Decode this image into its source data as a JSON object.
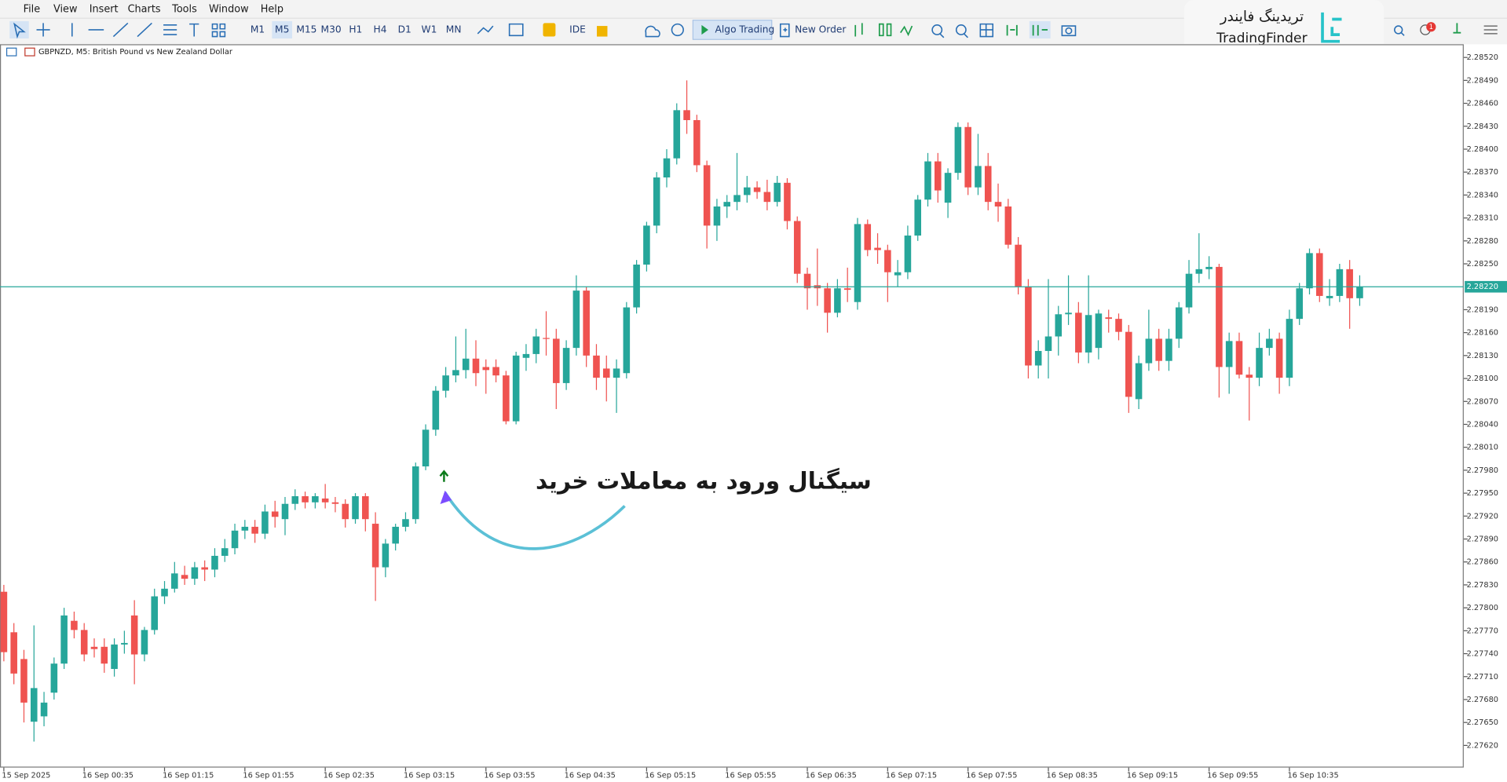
{
  "menu": [
    "File",
    "View",
    "Insert",
    "Charts",
    "Tools",
    "Window",
    "Help"
  ],
  "toolbar": {
    "timeframes": [
      "M1",
      "M5",
      "M15",
      "M30",
      "H1",
      "H4",
      "D1",
      "W1",
      "MN"
    ],
    "active_timeframe": "M5",
    "ide": "IDE",
    "algo_trading": "Algo Trading",
    "new_order": "New Order",
    "notifications": "1"
  },
  "logo": {
    "persian": "تریدینگ فایندر",
    "latin": "TradingFinder"
  },
  "annotation": "سیگنال ورود به معاملات خرید",
  "chart_data": {
    "type": "candlestick",
    "title": "GBPNZD, M5:  British Pound vs New Zealand Dollar",
    "up_color": "#26a69a",
    "down_color": "#ef5350",
    "grid": false,
    "ylim": [
      2.27591,
      2.28536
    ],
    "yticks": [
      {
        "value": 2.2852,
        "label": "2.28520"
      },
      {
        "value": 2.2849,
        "label": "2.28490"
      },
      {
        "value": 2.2846,
        "label": "2.28460"
      },
      {
        "value": 2.2843,
        "label": "2.28430"
      },
      {
        "value": 2.284,
        "label": "2.28400"
      },
      {
        "value": 2.2837,
        "label": "2.28370"
      },
      {
        "value": 2.2834,
        "label": "2.28340"
      },
      {
        "value": 2.2831,
        "label": "2.28310"
      },
      {
        "value": 2.2828,
        "label": "2.28280"
      },
      {
        "value": 2.2825,
        "label": "2.28250"
      },
      {
        "value": 2.2819,
        "label": "2.28190"
      },
      {
        "value": 2.2816,
        "label": "2.28160"
      },
      {
        "value": 2.2813,
        "label": "2.28130"
      },
      {
        "value": 2.281,
        "label": "2.28100"
      },
      {
        "value": 2.2807,
        "label": "2.28070"
      },
      {
        "value": 2.2804,
        "label": "2.28040"
      },
      {
        "value": 2.2801,
        "label": "2.28010"
      },
      {
        "value": 2.2798,
        "label": "2.27980"
      },
      {
        "value": 2.2795,
        "label": "2.27950"
      },
      {
        "value": 2.2792,
        "label": "2.27920"
      },
      {
        "value": 2.2789,
        "label": "2.27890"
      },
      {
        "value": 2.2786,
        "label": "2.27860"
      },
      {
        "value": 2.2783,
        "label": "2.27830"
      },
      {
        "value": 2.278,
        "label": "2.27800"
      },
      {
        "value": 2.2777,
        "label": "2.27770"
      },
      {
        "value": 2.2774,
        "label": "2.27740"
      },
      {
        "value": 2.2771,
        "label": "2.27710"
      },
      {
        "value": 2.2768,
        "label": "2.27680"
      },
      {
        "value": 2.2765,
        "label": "2.27650"
      },
      {
        "value": 2.2762,
        "label": "2.27620"
      }
    ],
    "price_line": {
      "value": 2.2822,
      "label": "2.28220",
      "color": "#26a69a"
    },
    "categories": [
      "15 Sep 2025",
      null,
      null,
      null,
      null,
      null,
      null,
      null,
      "16 Sep 00:35",
      null,
      null,
      null,
      null,
      null,
      null,
      null,
      "16 Sep 01:15",
      null,
      null,
      null,
      null,
      null,
      null,
      null,
      "16 Sep 01:55",
      null,
      null,
      null,
      null,
      null,
      null,
      null,
      "16 Sep 02:35",
      null,
      null,
      null,
      null,
      null,
      null,
      null,
      "16 Sep 03:15",
      null,
      null,
      null,
      null,
      null,
      null,
      null,
      "16 Sep 03:55",
      null,
      null,
      null,
      null,
      null,
      null,
      null,
      "16 Sep 04:35",
      null,
      null,
      null,
      null,
      null,
      null,
      null,
      "16 Sep 05:15",
      null,
      null,
      null,
      null,
      null,
      null,
      null,
      "16 Sep 05:55",
      null,
      null,
      null,
      null,
      null,
      null,
      null,
      "16 Sep 06:35",
      null,
      null,
      null,
      null,
      null,
      null,
      null,
      "16 Sep 07:15",
      null,
      null,
      null,
      null,
      null,
      null,
      null,
      "16 Sep 07:55",
      null,
      null,
      null,
      null,
      null,
      null,
      null,
      "16 Sep 08:35",
      null,
      null,
      null,
      null,
      null,
      null,
      null,
      "16 Sep 09:15",
      null,
      null,
      null,
      null,
      null,
      null,
      null,
      "16 Sep 09:55",
      null,
      null,
      null,
      null,
      null,
      null,
      null,
      "16 Sep 10:35",
      null,
      null,
      null,
      null,
      null,
      null,
      null
    ],
    "ohlc": [
      [
        2.27821,
        2.2783,
        2.2773,
        2.27742
      ],
      [
        2.27768,
        2.2778,
        2.277,
        2.27714
      ],
      [
        2.27733,
        2.27745,
        2.2765,
        2.27676
      ],
      [
        2.27651,
        2.27777,
        2.27625,
        2.27695
      ],
      [
        2.27658,
        2.2769,
        2.27645,
        2.27676
      ],
      [
        2.27689,
        2.27735,
        2.2768,
        2.27727
      ],
      [
        2.27727,
        2.278,
        2.2772,
        2.2779
      ],
      [
        2.27783,
        2.27795,
        2.2776,
        2.27771
      ],
      [
        2.27771,
        2.2778,
        2.2773,
        2.27739
      ],
      [
        2.27749,
        2.2776,
        2.27735,
        2.27746
      ],
      [
        2.27749,
        2.2776,
        2.27715,
        2.27727
      ],
      [
        2.2772,
        2.2776,
        2.2771,
        2.27752
      ],
      [
        2.27752,
        2.2777,
        2.2774,
        2.27754
      ],
      [
        2.2779,
        2.2781,
        2.277,
        2.27739
      ],
      [
        2.27739,
        2.27775,
        2.2773,
        2.27771
      ],
      [
        2.27771,
        2.27825,
        2.27765,
        2.27815
      ],
      [
        2.27815,
        2.27835,
        2.27805,
        2.27825
      ],
      [
        2.27825,
        2.2786,
        2.2782,
        2.27845
      ],
      [
        2.27843,
        2.27855,
        2.2783,
        2.27838
      ],
      [
        2.27838,
        2.2786,
        2.2783,
        2.27853
      ],
      [
        2.27853,
        2.27862,
        2.27835,
        2.2785
      ],
      [
        2.2785,
        2.27878,
        2.2784,
        2.27868
      ],
      [
        2.27868,
        2.2789,
        2.2786,
        2.27878
      ],
      [
        2.27878,
        2.2791,
        2.2787,
        2.27901
      ],
      [
        2.27901,
        2.27915,
        2.2789,
        2.27906
      ],
      [
        2.27906,
        2.27915,
        2.27885,
        2.27897
      ],
      [
        2.27897,
        2.27935,
        2.2789,
        2.27926
      ],
      [
        2.27926,
        2.2794,
        2.27905,
        2.27919
      ],
      [
        2.27916,
        2.27945,
        2.27895,
        2.27936
      ],
      [
        2.27936,
        2.27955,
        2.27928,
        2.27946
      ],
      [
        2.27946,
        2.27952,
        2.2793,
        2.27938
      ],
      [
        2.27938,
        2.2795,
        2.2793,
        2.27946
      ],
      [
        2.27943,
        2.27962,
        2.2793,
        2.27938
      ],
      [
        2.27938,
        2.27945,
        2.27925,
        2.27936
      ],
      [
        2.27936,
        2.27942,
        2.27905,
        2.27916
      ],
      [
        2.27916,
        2.2795,
        2.2791,
        2.27946
      ],
      [
        2.27946,
        2.2795,
        2.279,
        2.27916
      ],
      [
        2.2791,
        2.27925,
        2.27809,
        2.27853
      ],
      [
        2.27853,
        2.2789,
        2.2784,
        2.27884
      ],
      [
        2.27884,
        2.2791,
        2.27875,
        2.27906
      ],
      [
        2.27906,
        2.27925,
        2.279,
        2.27916
      ],
      [
        2.27916,
        2.2799,
        2.2791,
        2.27985
      ],
      [
        2.27985,
        2.2804,
        2.2798,
        2.28033
      ],
      [
        2.28033,
        2.2809,
        2.28025,
        2.28084
      ],
      [
        2.28084,
        2.28115,
        2.28075,
        2.28104
      ],
      [
        2.28104,
        2.28155,
        2.28095,
        2.28111
      ],
      [
        2.28111,
        2.28165,
        2.281,
        2.28126
      ],
      [
        2.28126,
        2.2815,
        2.2809,
        2.28107
      ],
      [
        2.28115,
        2.28125,
        2.2808,
        2.28111
      ],
      [
        2.28115,
        2.28125,
        2.28095,
        2.28104
      ],
      [
        2.28104,
        2.2811,
        2.2804,
        2.28044
      ],
      [
        2.28044,
        2.28135,
        2.2804,
        2.2813
      ],
      [
        2.28127,
        2.28145,
        2.2811,
        2.28132
      ],
      [
        2.28132,
        2.28165,
        2.2812,
        2.28155
      ],
      [
        2.28153,
        2.28188,
        2.2813,
        2.28152
      ],
      [
        2.28152,
        2.28165,
        2.2806,
        2.28094
      ],
      [
        2.28094,
        2.2815,
        2.28085,
        2.2814
      ],
      [
        2.2814,
        2.28235,
        2.2813,
        2.28215
      ],
      [
        2.28215,
        2.2822,
        2.28115,
        2.2813
      ],
      [
        2.2813,
        2.28145,
        2.28085,
        2.28101
      ],
      [
        2.28113,
        2.2813,
        2.2807,
        2.28101
      ],
      [
        2.28101,
        2.28125,
        2.28055,
        2.28113
      ],
      [
        2.28107,
        2.282,
        2.281,
        2.28193
      ],
      [
        2.28193,
        2.28255,
        2.28185,
        2.28249
      ],
      [
        2.28249,
        2.28305,
        2.2824,
        2.283
      ],
      [
        2.283,
        2.2837,
        2.2829,
        2.28363
      ],
      [
        2.28363,
        2.284,
        2.2835,
        2.28388
      ],
      [
        2.28388,
        2.2846,
        2.2838,
        2.28451
      ],
      [
        2.28451,
        2.2849,
        2.2842,
        2.28438
      ],
      [
        2.28438,
        2.28445,
        2.2837,
        2.28379
      ],
      [
        2.28379,
        2.28385,
        2.2827,
        2.283
      ],
      [
        2.283,
        2.28335,
        2.2828,
        2.28325
      ],
      [
        2.28325,
        2.2834,
        2.2831,
        2.28331
      ],
      [
        2.28331,
        2.28395,
        2.2832,
        2.2834
      ],
      [
        2.2834,
        2.28365,
        2.2833,
        2.2835
      ],
      [
        2.2835,
        2.28358,
        2.28335,
        2.28344
      ],
      [
        2.28344,
        2.2836,
        2.2832,
        2.28331
      ],
      [
        2.28331,
        2.28365,
        2.28325,
        2.28356
      ],
      [
        2.28356,
        2.28362,
        2.28295,
        2.28306
      ],
      [
        2.28306,
        2.28312,
        2.28225,
        2.28237
      ],
      [
        2.28237,
        2.28245,
        2.2819,
        2.28218
      ],
      [
        2.28222,
        2.2827,
        2.28195,
        2.28218
      ],
      [
        2.28218,
        2.28225,
        2.2816,
        2.28186
      ],
      [
        2.28186,
        2.2823,
        2.2818,
        2.28218
      ],
      [
        2.28218,
        2.28245,
        2.282,
        2.28216
      ],
      [
        2.282,
        2.2831,
        2.2819,
        2.28302
      ],
      [
        2.28302,
        2.28308,
        2.2826,
        2.28268
      ],
      [
        2.28271,
        2.2829,
        2.2825,
        2.28268
      ],
      [
        2.28268,
        2.28275,
        2.282,
        2.28239
      ],
      [
        2.28235,
        2.28255,
        2.2822,
        2.28239
      ],
      [
        2.28239,
        2.283,
        2.2823,
        2.28287
      ],
      [
        2.28287,
        2.2834,
        2.2828,
        2.28334
      ],
      [
        2.28334,
        2.28395,
        2.28325,
        2.28384
      ],
      [
        2.28384,
        2.28395,
        2.2833,
        2.28346
      ],
      [
        2.2833,
        2.28375,
        2.2831,
        2.28369
      ],
      [
        2.28369,
        2.28435,
        2.2836,
        2.28429
      ],
      [
        2.28429,
        2.28435,
        2.2834,
        2.2835
      ],
      [
        2.2835,
        2.2842,
        2.2834,
        2.28378
      ],
      [
        2.28378,
        2.28395,
        2.2832,
        2.28331
      ],
      [
        2.28331,
        2.28355,
        2.28305,
        2.28325
      ],
      [
        2.28325,
        2.28335,
        2.2827,
        2.28275
      ],
      [
        2.28275,
        2.28285,
        2.2821,
        2.2822
      ],
      [
        2.2822,
        2.2823,
        2.281,
        2.28117
      ],
      [
        2.28117,
        2.2815,
        2.281,
        2.28136
      ],
      [
        2.28136,
        2.2823,
        2.281,
        2.28155
      ],
      [
        2.28155,
        2.28195,
        2.2813,
        2.28184
      ],
      [
        2.28184,
        2.28235,
        2.2817,
        2.28186
      ],
      [
        2.28186,
        2.282,
        2.2812,
        2.28134
      ],
      [
        2.28134,
        2.28235,
        2.2812,
        2.28183
      ],
      [
        2.2814,
        2.2819,
        2.28125,
        2.28185
      ],
      [
        2.2818,
        2.2819,
        2.2816,
        2.28178
      ],
      [
        2.28178,
        2.28185,
        2.2815,
        2.28161
      ],
      [
        2.28161,
        2.2817,
        2.28055,
        2.28076
      ],
      [
        2.28073,
        2.2813,
        2.2806,
        2.2812
      ],
      [
        2.2812,
        2.2819,
        2.2811,
        2.28152
      ],
      [
        2.28152,
        2.28165,
        2.2811,
        2.28123
      ],
      [
        2.28123,
        2.28165,
        2.2811,
        2.28152
      ],
      [
        2.28152,
        2.282,
        2.2814,
        2.28193
      ],
      [
        2.28193,
        2.28255,
        2.28185,
        2.28237
      ],
      [
        2.28237,
        2.2829,
        2.28225,
        2.28243
      ],
      [
        2.28243,
        2.2826,
        2.2823,
        2.28246
      ],
      [
        2.28246,
        2.2825,
        2.28075,
        2.28115
      ],
      [
        2.28115,
        2.2816,
        2.2808,
        2.28149
      ],
      [
        2.28149,
        2.2816,
        2.281,
        2.28105
      ],
      [
        2.28105,
        2.28115,
        2.28045,
        2.28101
      ],
      [
        2.28101,
        2.2816,
        2.2809,
        2.2814
      ],
      [
        2.2814,
        2.28165,
        2.2813,
        2.28152
      ],
      [
        2.28152,
        2.2816,
        2.2808,
        2.28101
      ],
      [
        2.28101,
        2.2819,
        2.2809,
        2.28178
      ],
      [
        2.28178,
        2.28225,
        2.2817,
        2.28218
      ],
      [
        2.28218,
        2.2827,
        2.2821,
        2.28264
      ],
      [
        2.28264,
        2.2827,
        2.282,
        2.28208
      ],
      [
        2.28205,
        2.2823,
        2.28195,
        2.28208
      ],
      [
        2.28208,
        2.2825,
        2.282,
        2.28243
      ],
      [
        2.28243,
        2.28255,
        2.28165,
        2.28205
      ],
      [
        2.28205,
        2.28235,
        2.28195,
        2.2822
      ]
    ]
  }
}
